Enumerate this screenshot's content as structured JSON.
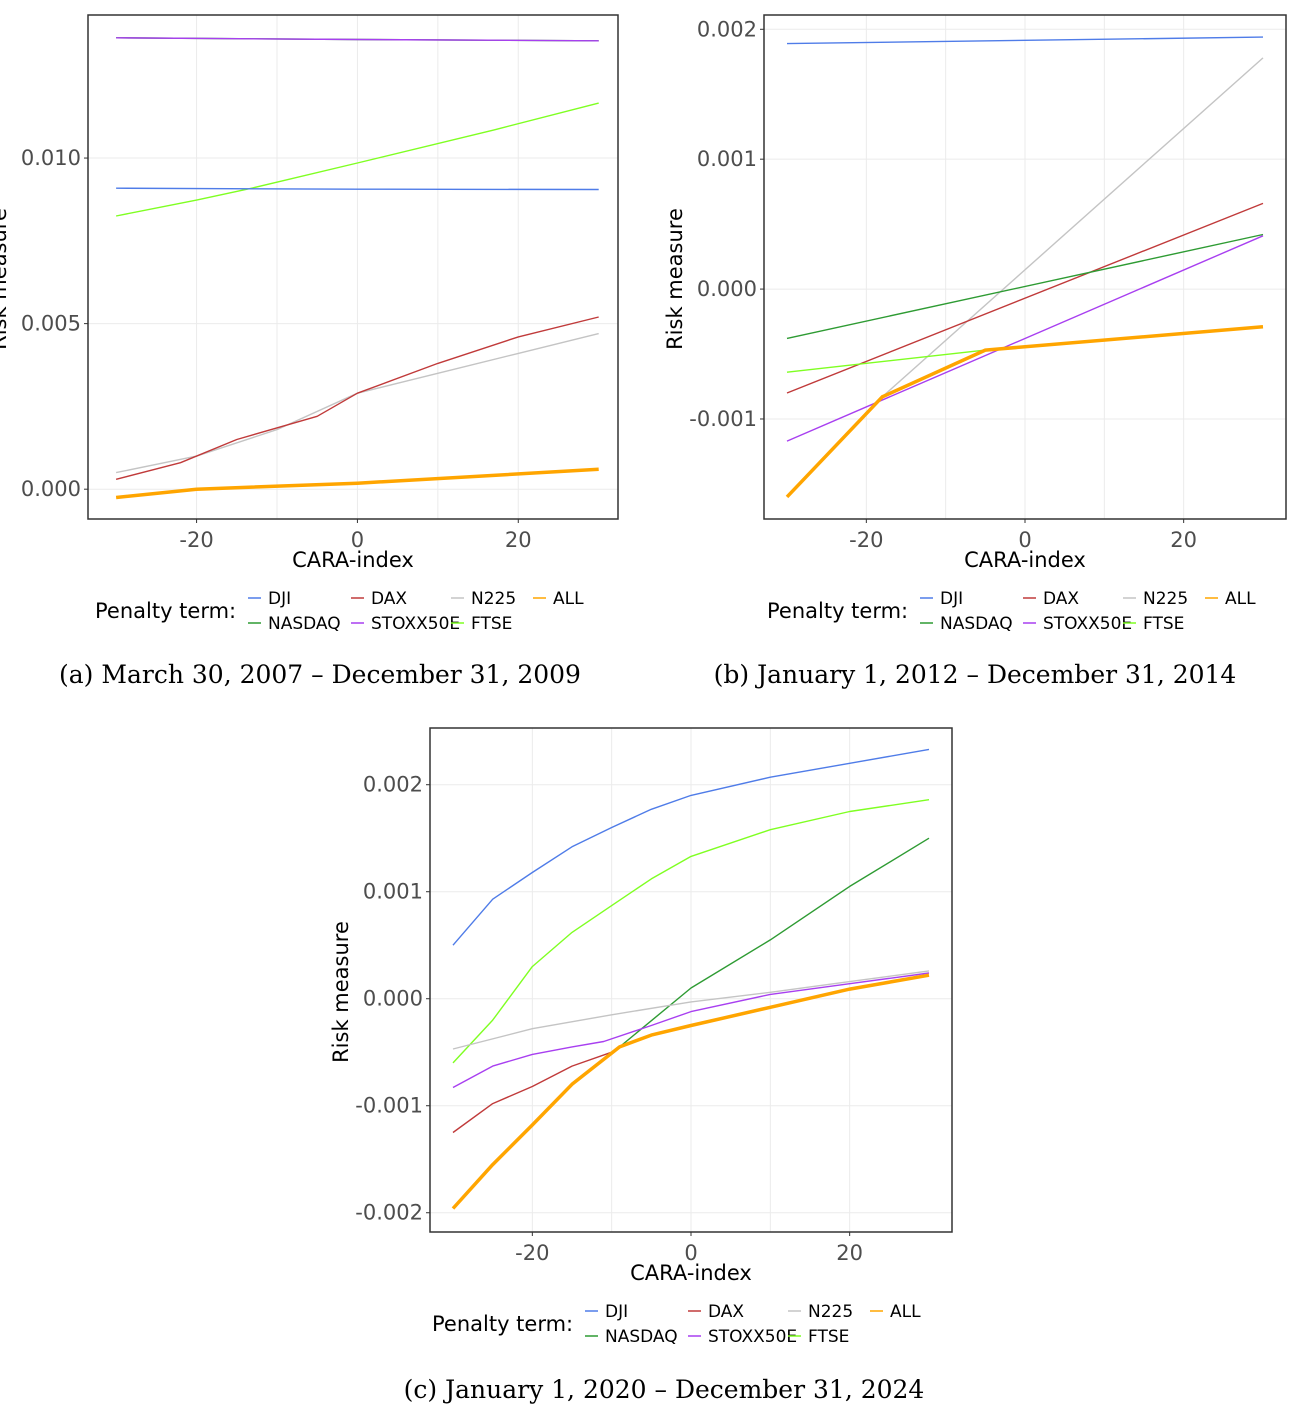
{
  "figure": {
    "legend_title": "Penalty term:",
    "series_styles": [
      {
        "name": "DJI",
        "color": "#4f7ce8"
      },
      {
        "name": "NASDAQ",
        "color": "#2e9b33"
      },
      {
        "name": "DAX",
        "color": "#c03a3a"
      },
      {
        "name": "STOXX50E",
        "color": "#a83ff0"
      },
      {
        "name": "N225",
        "color": "#c4c4c4"
      },
      {
        "name": "FTSE",
        "color": "#7fff22"
      },
      {
        "name": "ALL",
        "color": "#ffa500"
      }
    ],
    "legend_order": [
      "DJI",
      "DAX",
      "N225",
      "ALL",
      "NASDAQ",
      "STOXX50E",
      "FTSE"
    ]
  },
  "chart_data": [
    {
      "id": "a",
      "type": "line",
      "caption": "(a) March 30, 2007 – December 31, 2009",
      "xlabel": "CARA-index",
      "ylabel": "Risk measure",
      "xlim": [
        -33.5,
        32.4
      ],
      "ylim": [
        -0.0009,
        0.01432
      ],
      "xticks": [
        -20,
        0,
        20
      ],
      "xtick_labels": [
        "-20",
        "0",
        "20"
      ],
      "yticks": [
        0.0,
        0.005,
        0.01
      ],
      "ytick_labels": [
        "0.000",
        "0.005",
        "0.010"
      ],
      "grid": true,
      "legend_position": "bottom",
      "series": [
        {
          "name": "NASDAQ",
          "x": [
            -30,
            0,
            30
          ],
          "y": [
            0.01363,
            0.01358,
            0.01354
          ]
        },
        {
          "name": "STOXX50E",
          "x": [
            -30,
            0,
            30
          ],
          "y": [
            0.01363,
            0.01358,
            0.01354
          ]
        },
        {
          "name": "FTSE",
          "x": [
            -30,
            -20,
            -13,
            0,
            17,
            30
          ],
          "y": [
            0.00825,
            0.00873,
            0.0091,
            0.00985,
            0.01085,
            0.01166
          ]
        },
        {
          "name": "DJI",
          "x": [
            -30,
            0,
            30
          ],
          "y": [
            0.00909,
            0.00906,
            0.00905
          ]
        },
        {
          "name": "N225",
          "x": [
            -30,
            -20,
            -10,
            0,
            10,
            20,
            30
          ],
          "y": [
            0.0005,
            0.001,
            0.0018,
            0.0029,
            0.0035,
            0.0041,
            0.0047
          ]
        },
        {
          "name": "DAX",
          "x": [
            -30,
            -22,
            -15,
            -5,
            0,
            10,
            20,
            30
          ],
          "y": [
            0.0003,
            0.0008,
            0.0015,
            0.0022,
            0.0029,
            0.0038,
            0.0046,
            0.0052
          ]
        },
        {
          "name": "ALL",
          "x": [
            -30,
            -20,
            0,
            30
          ],
          "y": [
            -0.00025,
            0.0,
            0.00018,
            0.0006
          ]
        }
      ]
    },
    {
      "id": "b",
      "type": "line",
      "caption": "(b) January 1, 2012 – December 31, 2014",
      "xlabel": "CARA-index",
      "ylabel": "Risk measure",
      "xlim": [
        -32.9,
        32.9
      ],
      "ylim": [
        -0.00177,
        0.00211
      ],
      "xticks": [
        -20,
        0,
        20
      ],
      "xtick_labels": [
        "-20",
        "0",
        "20"
      ],
      "yticks": [
        -0.001,
        0.0,
        0.001,
        0.002
      ],
      "ytick_labels": [
        "-0.001",
        "0.000",
        "0.001",
        "0.002"
      ],
      "grid": true,
      "legend_position": "bottom",
      "series": [
        {
          "name": "DJI",
          "x": [
            -30,
            30
          ],
          "y": [
            0.00189,
            0.00194
          ]
        },
        {
          "name": "N225",
          "x": [
            -18,
            30
          ],
          "y": [
            -0.00083,
            0.00178
          ]
        },
        {
          "name": "DAX",
          "x": [
            -30,
            30
          ],
          "y": [
            -0.0008,
            0.00066
          ]
        },
        {
          "name": "NASDAQ",
          "x": [
            -30,
            30
          ],
          "y": [
            -0.00038,
            0.00042
          ]
        },
        {
          "name": "STOXX50E",
          "x": [
            -30,
            30
          ],
          "y": [
            -0.00117,
            0.00041
          ]
        },
        {
          "name": "FTSE",
          "x": [
            -30,
            -5
          ],
          "y": [
            -0.00064,
            -0.00047
          ]
        },
        {
          "name": "ALL",
          "x": [
            -30,
            -18,
            -5,
            30
          ],
          "y": [
            -0.0016,
            -0.00083,
            -0.00047,
            -0.00029
          ]
        }
      ]
    },
    {
      "id": "c",
      "type": "line",
      "caption": "(c) January 1, 2020 – December 31, 2024",
      "xlabel": "CARA-index",
      "ylabel": "Risk measure",
      "xlim": [
        -32.9,
        32.9
      ],
      "ylim": [
        -0.00218,
        0.00253
      ],
      "xticks": [
        -20,
        0,
        20
      ],
      "xtick_labels": [
        "-20",
        "0",
        "20"
      ],
      "yticks": [
        -0.002,
        -0.001,
        0.0,
        0.001,
        0.002
      ],
      "ytick_labels": [
        "-0.002",
        "-0.001",
        "0.000",
        "0.001",
        "0.002"
      ],
      "grid": true,
      "legend_position": "bottom",
      "series": [
        {
          "name": "DJI",
          "x": [
            -30,
            -25,
            -20,
            -15,
            -10,
            -5,
            0,
            10,
            20,
            30
          ],
          "y": [
            0.0005,
            0.00093,
            0.00118,
            0.00142,
            0.0016,
            0.00177,
            0.0019,
            0.00207,
            0.0022,
            0.00233
          ]
        },
        {
          "name": "FTSE",
          "x": [
            -30,
            -25,
            -20,
            -15,
            -10,
            -5,
            0,
            10,
            20,
            30
          ],
          "y": [
            -0.0006,
            -0.0002,
            0.0003,
            0.00062,
            0.00087,
            0.00112,
            0.00133,
            0.00158,
            0.00175,
            0.00186
          ]
        },
        {
          "name": "NASDAQ",
          "x": [
            -9,
            0,
            10,
            20,
            30
          ],
          "y": [
            -0.00045,
            0.0001,
            0.00055,
            0.00105,
            0.0015
          ]
        },
        {
          "name": "N225",
          "x": [
            -30,
            -20,
            -10,
            0,
            10,
            20,
            30
          ],
          "y": [
            -0.00047,
            -0.00028,
            -0.00015,
            -3e-05,
            6e-05,
            0.00016,
            0.00026
          ]
        },
        {
          "name": "STOXX50E",
          "x": [
            -30,
            -25,
            -20,
            -15,
            -11,
            -5,
            0,
            10,
            20,
            30
          ],
          "y": [
            -0.00083,
            -0.00063,
            -0.00052,
            -0.00045,
            -0.0004,
            -0.00025,
            -0.00012,
            4e-05,
            0.00014,
            0.00024
          ]
        },
        {
          "name": "DAX",
          "x": [
            -30,
            -25,
            -20,
            -15,
            -10,
            -9
          ],
          "y": [
            -0.00125,
            -0.00098,
            -0.00082,
            -0.00063,
            -0.0005,
            -0.00045
          ]
        },
        {
          "name": "ALL",
          "x": [
            -30,
            -25,
            -20,
            -15,
            -9,
            -5,
            0,
            10,
            20,
            30
          ],
          "y": [
            -0.00196,
            -0.00155,
            -0.00118,
            -0.0008,
            -0.00045,
            -0.00034,
            -0.00025,
            -8e-05,
            9e-05,
            0.00022
          ]
        }
      ]
    }
  ]
}
